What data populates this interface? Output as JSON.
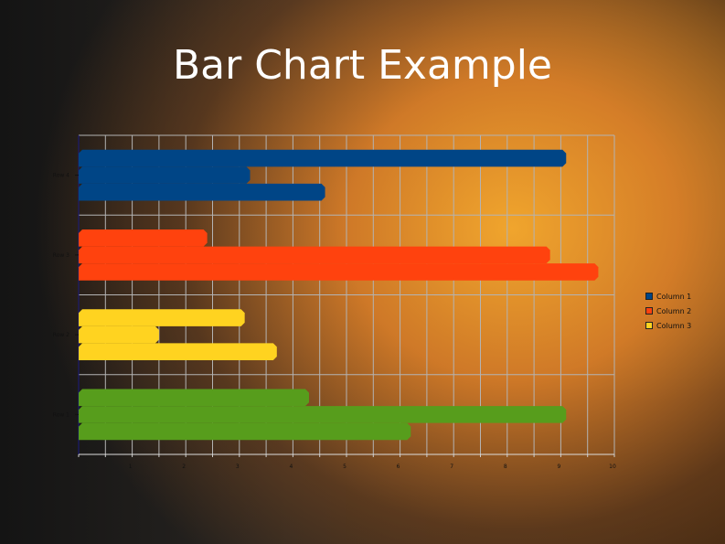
{
  "title": "Bar Chart Example",
  "chart_data": {
    "type": "bar",
    "orientation": "horizontal",
    "title": "Bar Chart Example",
    "categories": [
      "Row 1",
      "Row 2",
      "Row 3",
      "Row 4"
    ],
    "series": [
      {
        "name": "Column 1",
        "color": "#004586",
        "values": [
          4.3,
          3.1,
          2.4,
          9.1
        ]
      },
      {
        "name": "Column 2",
        "color": "#ff420e",
        "values": [
          9.1,
          1.5,
          8.8,
          3.2
        ]
      },
      {
        "name": "Column 3",
        "color": "#ffd320",
        "values": [
          6.2,
          3.7,
          9.7,
          4.6
        ]
      }
    ],
    "row_colors": [
      "#579d1c",
      "#ffd320",
      "#ff420e",
      "#004586"
    ],
    "xlim": [
      0,
      10
    ],
    "xticks": [
      "1",
      "2",
      "3",
      "4",
      "5",
      "6",
      "7",
      "8",
      "9",
      "10"
    ],
    "grid": true,
    "legend": "right"
  }
}
